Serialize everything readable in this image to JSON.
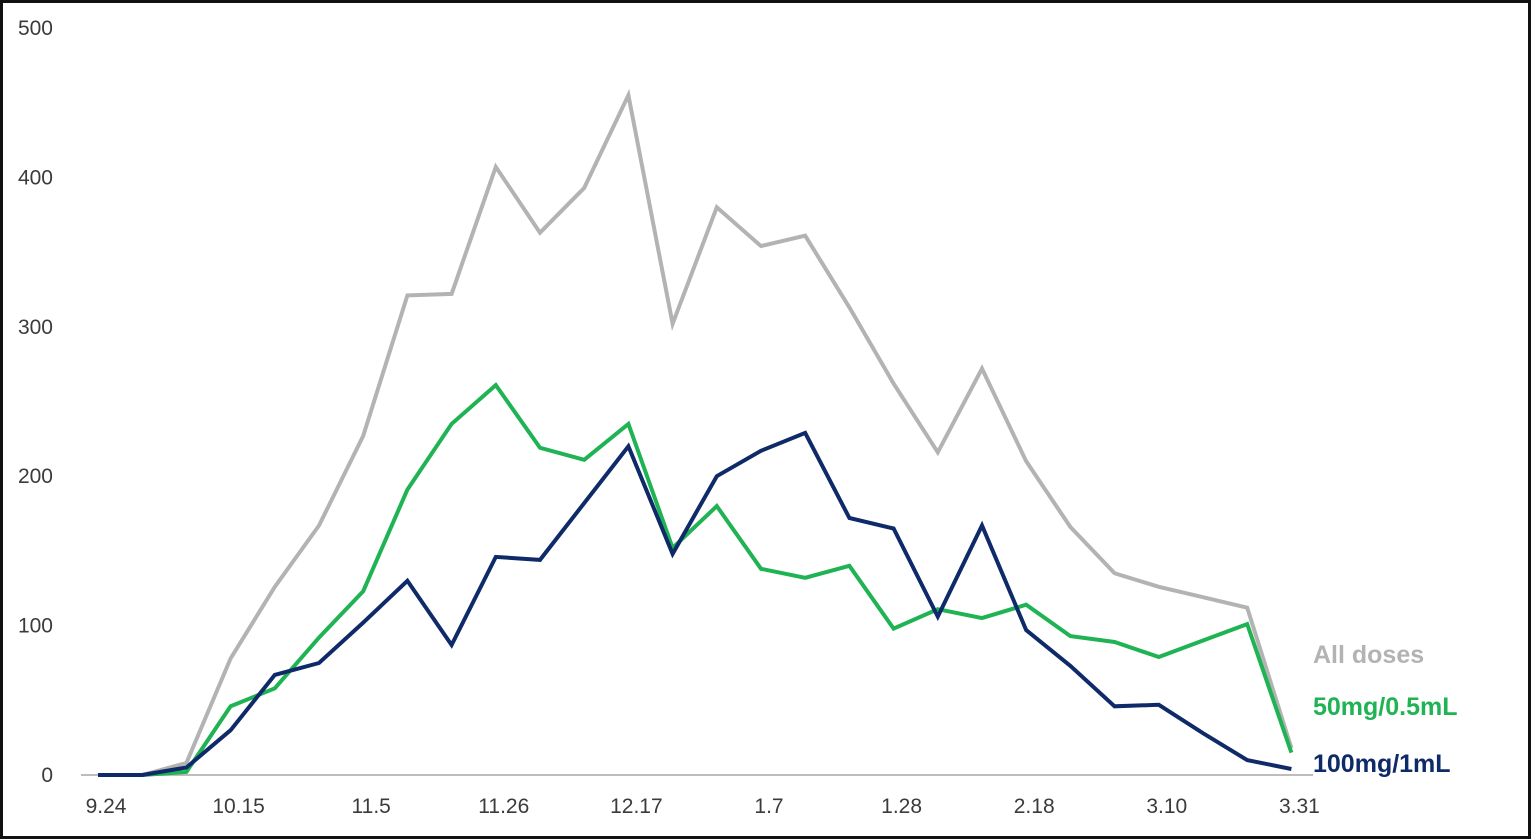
{
  "chart_data": {
    "type": "line",
    "title": "",
    "xlabel": "",
    "ylabel": "",
    "ylim": [
      0,
      500
    ],
    "yticks": [
      0,
      100,
      200,
      300,
      400,
      500
    ],
    "x_tick_labels": [
      "9.24",
      "10.15",
      "11.5",
      "11.26",
      "12.17",
      "1.7",
      "1.28",
      "2.18",
      "3.10",
      "3.31"
    ],
    "grid": false,
    "legend": "right-end labels",
    "series": [
      {
        "name": "All doses",
        "color": "#b3b3b3",
        "values": [
          0,
          0,
          8,
          78,
          126,
          167,
          227,
          321,
          322,
          407,
          363,
          393,
          455,
          302,
          380,
          354,
          361,
          313,
          262,
          216,
          272,
          210,
          166,
          135,
          126,
          119,
          112,
          18
        ]
      },
      {
        "name": "50mg/0.5mL",
        "color": "#1fb354",
        "values": [
          0,
          0,
          2,
          46,
          58,
          92,
          123,
          191,
          235,
          261,
          219,
          211,
          235,
          152,
          180,
          138,
          132,
          140,
          98,
          111,
          105,
          114,
          93,
          89,
          79,
          90,
          101,
          15
        ]
      },
      {
        "name": "100mg/1mL",
        "color": "#0f2a68",
        "values": [
          0,
          0,
          5,
          30,
          67,
          75,
          102,
          130,
          87,
          146,
          144,
          182,
          220,
          148,
          200,
          217,
          229,
          172,
          165,
          106,
          167,
          97,
          73,
          46,
          47,
          28,
          10,
          4
        ]
      }
    ]
  }
}
